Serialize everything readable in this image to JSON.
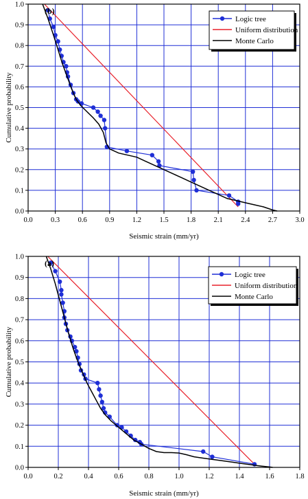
{
  "chart_data": [
    {
      "type": "line",
      "panel_label": "(b)",
      "xlabel": "Seismic strain (mm/yr)",
      "ylabel": "Cumulative probability",
      "xlim": [
        0.0,
        3.0
      ],
      "ylim": [
        0.0,
        1.0
      ],
      "x_ticks": [
        "0.0",
        "0.3",
        "0.6",
        "0.9",
        "1.2",
        "1.5",
        "1.8",
        "2.1",
        "2.4",
        "2.7",
        "3.0"
      ],
      "y_ticks": [
        "0.0",
        "0.1",
        "0.2",
        "0.3",
        "0.4",
        "0.5",
        "0.6",
        "0.7",
        "0.8",
        "0.9",
        "1.0"
      ],
      "grid": true,
      "legend_position": "top-right",
      "series": [
        {
          "name": "Logic tree",
          "color": "#1f2fd6",
          "marker": "circle",
          "x": [
            0.22,
            0.24,
            0.28,
            0.3,
            0.33,
            0.35,
            0.37,
            0.39,
            0.42,
            0.43,
            0.44,
            0.47,
            0.5,
            0.53,
            0.55,
            0.59,
            0.72,
            0.77,
            0.8,
            0.84,
            0.85,
            0.87,
            1.09,
            1.37,
            1.44,
            1.45,
            1.82,
            1.83,
            1.86,
            2.22,
            2.32,
            2.32
          ],
          "y": [
            0.97,
            0.93,
            0.89,
            0.85,
            0.82,
            0.78,
            0.75,
            0.72,
            0.7,
            0.67,
            0.65,
            0.61,
            0.57,
            0.54,
            0.53,
            0.52,
            0.5,
            0.48,
            0.46,
            0.44,
            0.4,
            0.31,
            0.29,
            0.27,
            0.24,
            0.22,
            0.19,
            0.15,
            0.1,
            0.075,
            0.045,
            0.035
          ]
        },
        {
          "name": "Uniform distribution",
          "color": "#e8202a",
          "x": [
            0.18,
            2.32
          ],
          "y": [
            1.0,
            0.02
          ]
        },
        {
          "name": "Monte Carlo",
          "color": "#000000",
          "x": [
            0.16,
            0.22,
            0.28,
            0.33,
            0.38,
            0.43,
            0.48,
            0.53,
            0.58,
            0.65,
            0.72,
            0.78,
            0.83,
            0.86,
            0.9,
            1.0,
            1.1,
            1.2,
            1.3,
            1.4,
            1.5,
            1.6,
            1.7,
            1.8,
            1.9,
            2.0,
            2.1,
            2.2,
            2.3,
            2.4,
            2.5,
            2.6,
            2.7,
            2.75
          ],
          "y": [
            1.0,
            0.93,
            0.85,
            0.78,
            0.71,
            0.65,
            0.59,
            0.54,
            0.51,
            0.48,
            0.45,
            0.42,
            0.38,
            0.33,
            0.3,
            0.28,
            0.27,
            0.26,
            0.24,
            0.22,
            0.2,
            0.18,
            0.16,
            0.14,
            0.12,
            0.1,
            0.08,
            0.06,
            0.05,
            0.04,
            0.03,
            0.02,
            0.005,
            0.0
          ]
        }
      ]
    },
    {
      "type": "line",
      "panel_label": "(a)",
      "xlabel": "Seismic strain (mm/yr)",
      "ylabel": "Cumulative probability",
      "xlim": [
        0.0,
        1.8
      ],
      "ylim": [
        0.0,
        1.0
      ],
      "x_ticks": [
        "0.0",
        "0.2",
        "0.4",
        "0.6",
        "0.8",
        "1.0",
        "1.2",
        "1.4",
        "1.6",
        "1.8"
      ],
      "y_ticks": [
        "0.0",
        "0.1",
        "0.2",
        "0.3",
        "0.4",
        "0.5",
        "0.6",
        "0.7",
        "0.8",
        "0.9",
        "1.0"
      ],
      "grid": true,
      "legend_position": "top-right",
      "series": [
        {
          "name": "Logic tree",
          "color": "#1f2fd6",
          "marker": "circle",
          "x": [
            0.15,
            0.18,
            0.21,
            0.22,
            0.22,
            0.23,
            0.24,
            0.24,
            0.25,
            0.26,
            0.28,
            0.29,
            0.31,
            0.32,
            0.33,
            0.34,
            0.35,
            0.37,
            0.38,
            0.46,
            0.47,
            0.48,
            0.49,
            0.5,
            0.51,
            0.54,
            0.59,
            0.62,
            0.65,
            0.68,
            0.71,
            0.74,
            0.75,
            1.16,
            1.22,
            1.5
          ],
          "y": [
            0.97,
            0.93,
            0.88,
            0.84,
            0.82,
            0.78,
            0.74,
            0.71,
            0.68,
            0.65,
            0.62,
            0.6,
            0.57,
            0.55,
            0.52,
            0.49,
            0.46,
            0.44,
            0.42,
            0.4,
            0.37,
            0.34,
            0.31,
            0.28,
            0.26,
            0.24,
            0.2,
            0.19,
            0.17,
            0.15,
            0.13,
            0.12,
            0.11,
            0.075,
            0.05,
            0.015
          ]
        },
        {
          "name": "Uniform distribution",
          "color": "#e8202a",
          "x": [
            0.13,
            1.5
          ],
          "y": [
            1.0,
            0.015
          ]
        },
        {
          "name": "Monte Carlo",
          "color": "#000000",
          "x": [
            0.12,
            0.15,
            0.18,
            0.21,
            0.24,
            0.27,
            0.3,
            0.33,
            0.36,
            0.39,
            0.42,
            0.45,
            0.48,
            0.51,
            0.55,
            0.6,
            0.65,
            0.7,
            0.75,
            0.8,
            0.85,
            0.9,
            0.95,
            1.0,
            1.05,
            1.1,
            1.15,
            1.2,
            1.25,
            1.3,
            1.35,
            1.4,
            1.45,
            1.5,
            1.55,
            1.6,
            1.62
          ],
          "y": [
            1.0,
            0.94,
            0.87,
            0.79,
            0.71,
            0.63,
            0.56,
            0.5,
            0.45,
            0.4,
            0.36,
            0.32,
            0.28,
            0.25,
            0.22,
            0.19,
            0.16,
            0.13,
            0.11,
            0.09,
            0.075,
            0.07,
            0.07,
            0.068,
            0.06,
            0.05,
            0.045,
            0.04,
            0.035,
            0.03,
            0.025,
            0.02,
            0.015,
            0.01,
            0.006,
            0.002,
            0.0
          ]
        }
      ]
    }
  ]
}
